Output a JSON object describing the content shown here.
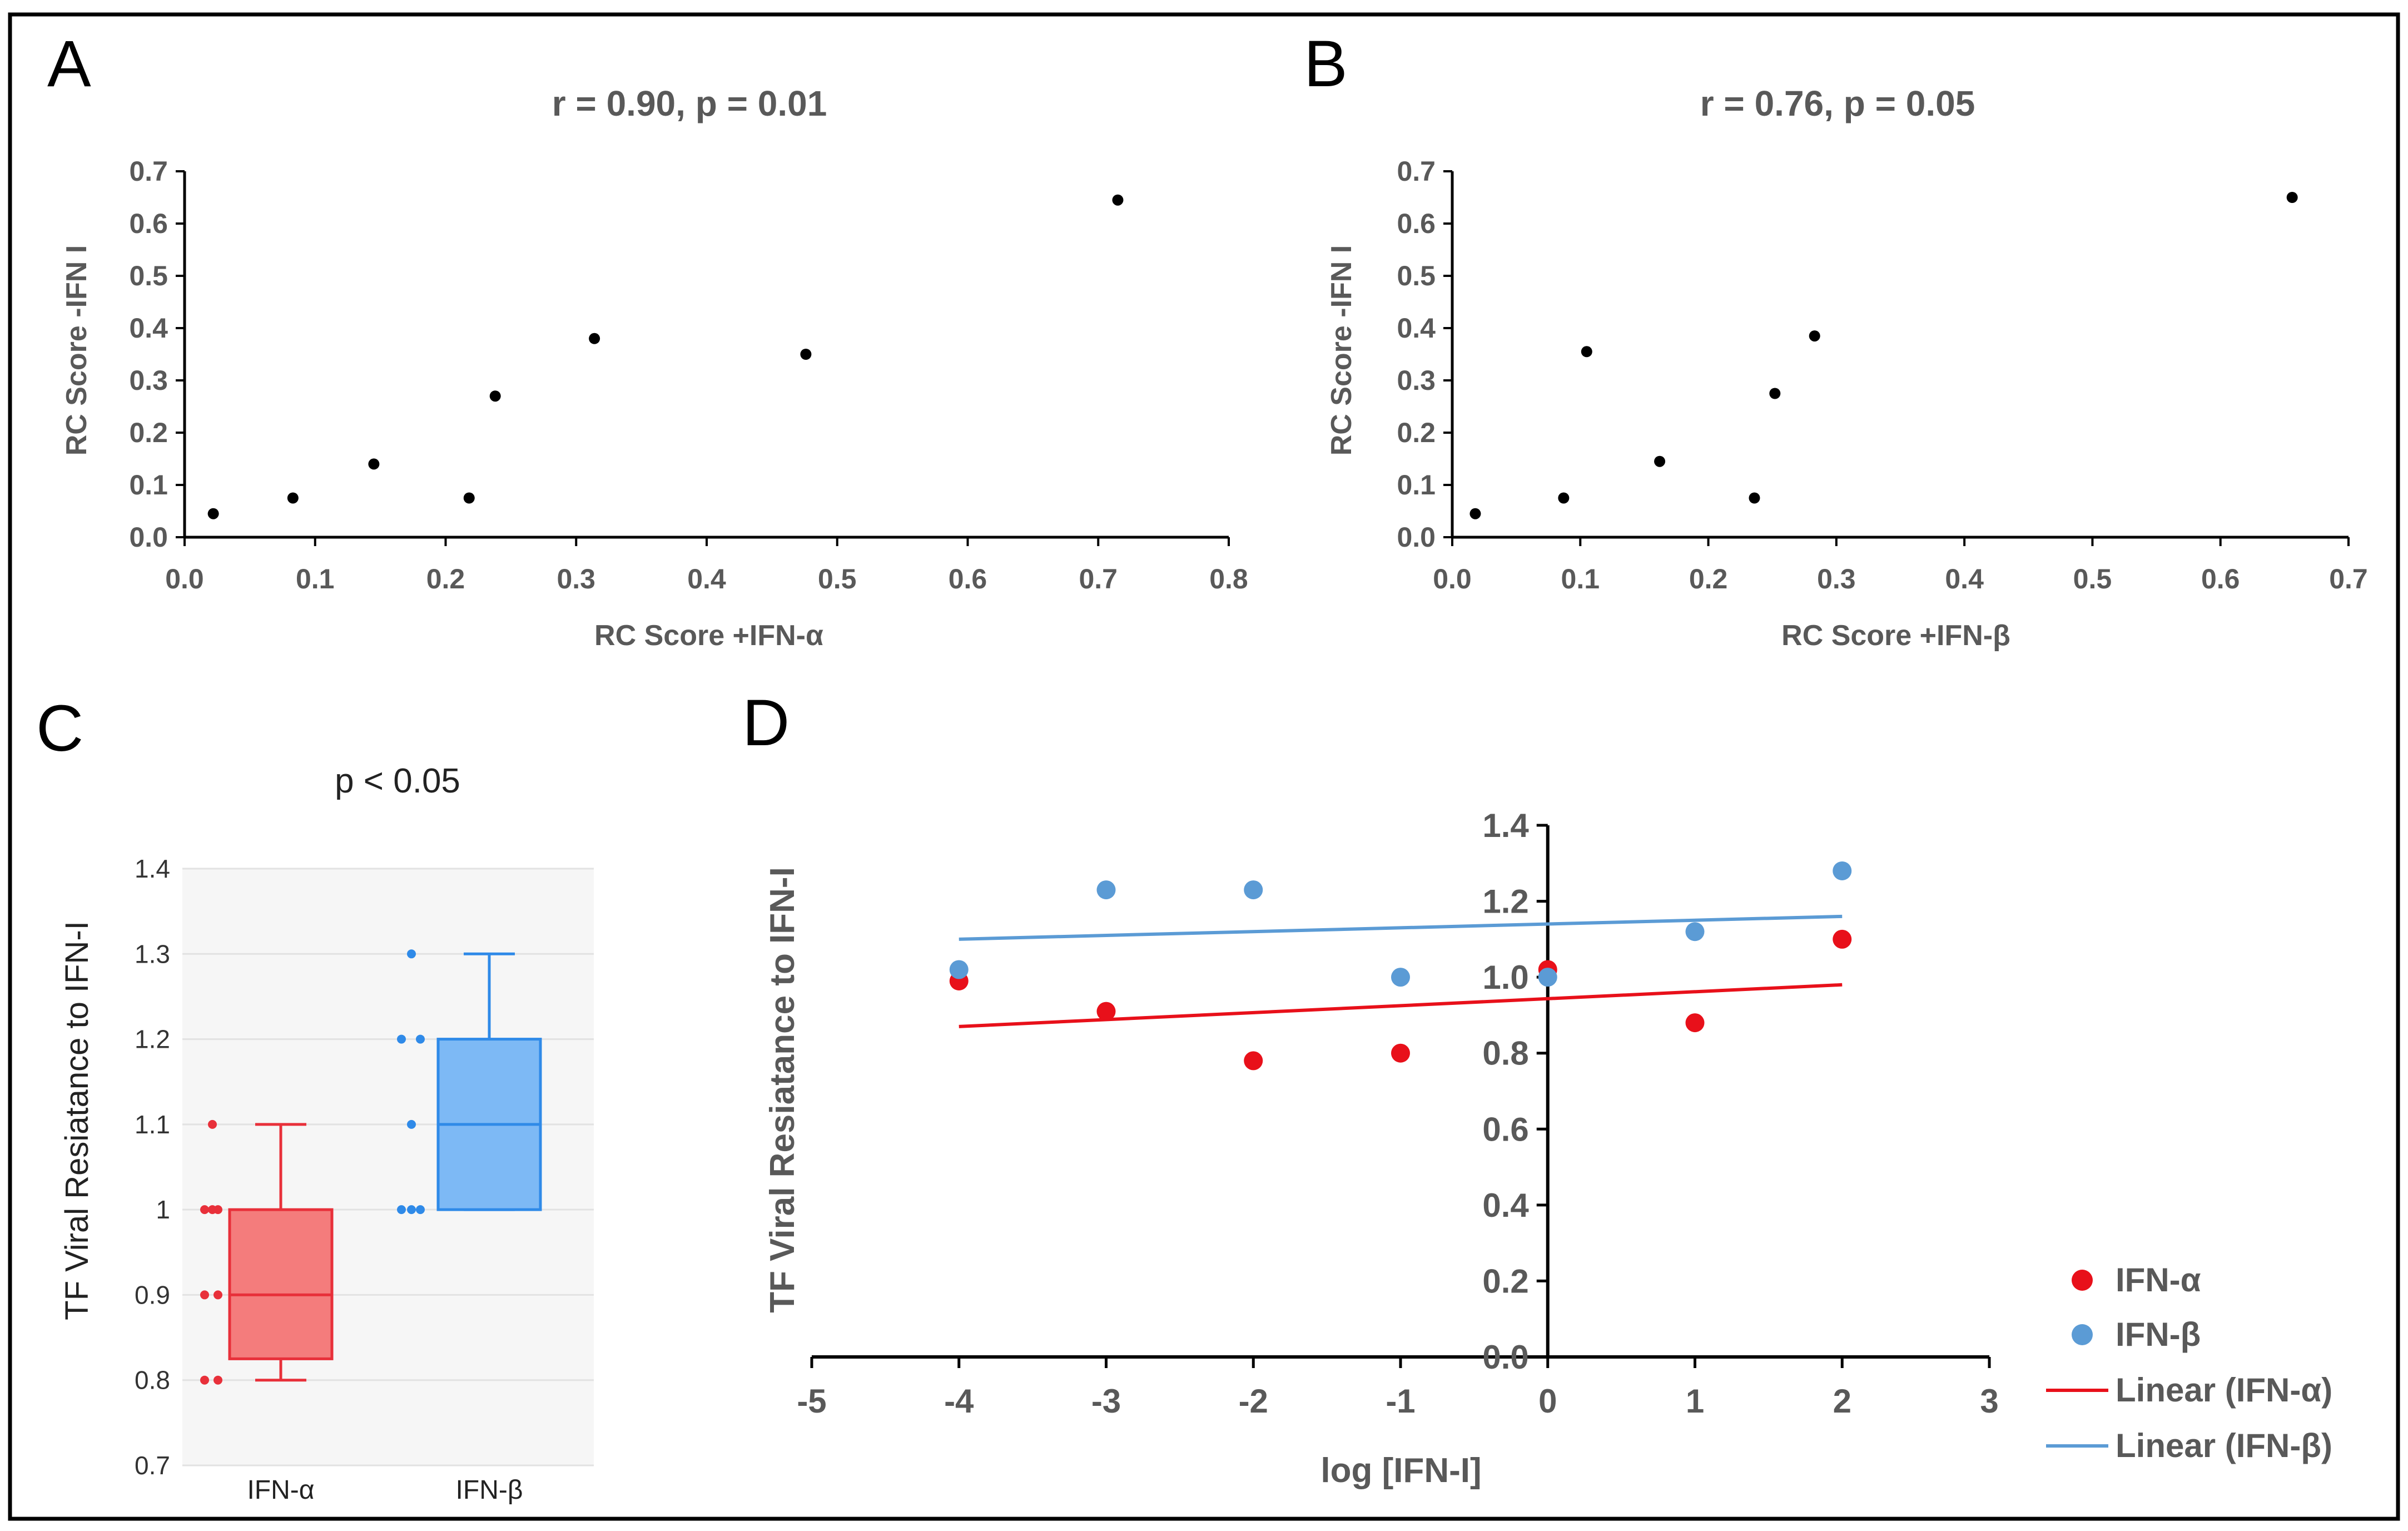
{
  "colors": {
    "red": "#e8101a",
    "blue": "#5b9bd5",
    "box_red_fill": "#f47c7c",
    "box_red_stroke": "#e8303a",
    "box_blue_fill": "#7db9f5",
    "box_blue_stroke": "#2f8ae8",
    "axis_gray": "#595959",
    "panel_bg": "#f6f6f6"
  },
  "chart_data": [
    {
      "panel": "A",
      "type": "scatter",
      "title": "r = 0.90, p = 0.01",
      "xlabel": "RC Score +IFN-α",
      "ylabel": "RC Score -IFN I",
      "xlim": [
        0,
        0.8
      ],
      "ylim": [
        0,
        0.7
      ],
      "xticks": [
        "0.0",
        "0.1",
        "0.2",
        "0.3",
        "0.4",
        "0.5",
        "0.6",
        "0.7",
        "0.8"
      ],
      "yticks": [
        "0.0",
        "0.1",
        "0.2",
        "0.3",
        "0.4",
        "0.5",
        "0.6",
        "0.7"
      ],
      "points": [
        {
          "x": 0.022,
          "y": 0.045
        },
        {
          "x": 0.083,
          "y": 0.075
        },
        {
          "x": 0.145,
          "y": 0.14
        },
        {
          "x": 0.218,
          "y": 0.075
        },
        {
          "x": 0.238,
          "y": 0.27
        },
        {
          "x": 0.314,
          "y": 0.38
        },
        {
          "x": 0.476,
          "y": 0.35
        },
        {
          "x": 0.715,
          "y": 0.645
        }
      ]
    },
    {
      "panel": "B",
      "type": "scatter",
      "title": "r = 0.76, p = 0.05",
      "xlabel": "RC Score +IFN-β",
      "ylabel": "RC Score -IFN I",
      "xlim": [
        0,
        0.7
      ],
      "ylim": [
        0,
        0.7
      ],
      "xticks": [
        "0.0",
        "0.1",
        "0.2",
        "0.3",
        "0.4",
        "0.5",
        "0.6",
        "0.7"
      ],
      "yticks": [
        "0.0",
        "0.1",
        "0.2",
        "0.3",
        "0.4",
        "0.5",
        "0.6",
        "0.7"
      ],
      "points": [
        {
          "x": 0.018,
          "y": 0.045
        },
        {
          "x": 0.087,
          "y": 0.075
        },
        {
          "x": 0.105,
          "y": 0.355
        },
        {
          "x": 0.162,
          "y": 0.145
        },
        {
          "x": 0.236,
          "y": 0.075
        },
        {
          "x": 0.252,
          "y": 0.275
        },
        {
          "x": 0.283,
          "y": 0.385
        },
        {
          "x": 0.656,
          "y": 0.65
        }
      ]
    },
    {
      "panel": "C",
      "type": "box",
      "title": "p < 0.05",
      "ylabel": "TF Viral Resiatance to IFN-I",
      "ylim": [
        0.7,
        1.4
      ],
      "yticks": [
        "0.7",
        "0.8",
        "0.9",
        "1",
        "1.1",
        "1.2",
        "1.3",
        "1.4"
      ],
      "categories": [
        "IFN-α",
        "IFN-β"
      ],
      "boxes": [
        {
          "name": "IFN-α",
          "min": 0.8,
          "q1": 0.825,
          "median": 0.9,
          "q3": 1.0,
          "max": 1.1,
          "points": [
            1.1,
            1.0,
            1.0,
            1.0,
            0.9,
            0.9,
            0.8,
            0.8
          ]
        },
        {
          "name": "IFN-β",
          "min": 1.0,
          "q1": 1.0,
          "median": 1.1,
          "q3": 1.2,
          "max": 1.3,
          "points": [
            1.3,
            1.2,
            1.2,
            1.1,
            1.0,
            1.0,
            1.0
          ]
        }
      ]
    },
    {
      "panel": "D",
      "type": "scatter",
      "xlabel": "log [IFN-I]",
      "ylabel": "TF Viral Resiatance to IFN-I",
      "xlim": [
        -5,
        3
      ],
      "ylim": [
        0,
        1.4
      ],
      "xticks": [
        "-5",
        "-4",
        "-3",
        "-2",
        "-1",
        "0",
        "1",
        "2",
        "3"
      ],
      "yticks": [
        "0.0",
        "0.2",
        "0.4",
        "0.6",
        "0.8",
        "1.0",
        "1.2",
        "1.4"
      ],
      "series": [
        {
          "name": "IFN-α",
          "color": "#e8101a",
          "x": [
            -4,
            -3,
            -2,
            -1,
            0,
            1,
            2
          ],
          "y": [
            0.99,
            0.91,
            0.78,
            0.8,
            1.02,
            0.88,
            1.1
          ]
        },
        {
          "name": "IFN-β",
          "color": "#5b9bd5",
          "x": [
            -4,
            -3,
            -2,
            -1,
            0,
            1,
            2
          ],
          "y": [
            1.02,
            1.23,
            1.23,
            1.0,
            1.0,
            1.12,
            1.28
          ]
        }
      ],
      "trendlines": [
        {
          "name": "Linear (IFN-α)",
          "color": "#e8101a",
          "x": [
            -4,
            2
          ],
          "y": [
            0.87,
            0.98
          ]
        },
        {
          "name": "Linear (IFN-β)",
          "color": "#5b9bd5",
          "x": [
            -4,
            2
          ],
          "y": [
            1.1,
            1.16
          ]
        }
      ],
      "legend": [
        "IFN-α",
        "IFN-β",
        "Linear (IFN-α)",
        "Linear (IFN-β)"
      ]
    }
  ]
}
